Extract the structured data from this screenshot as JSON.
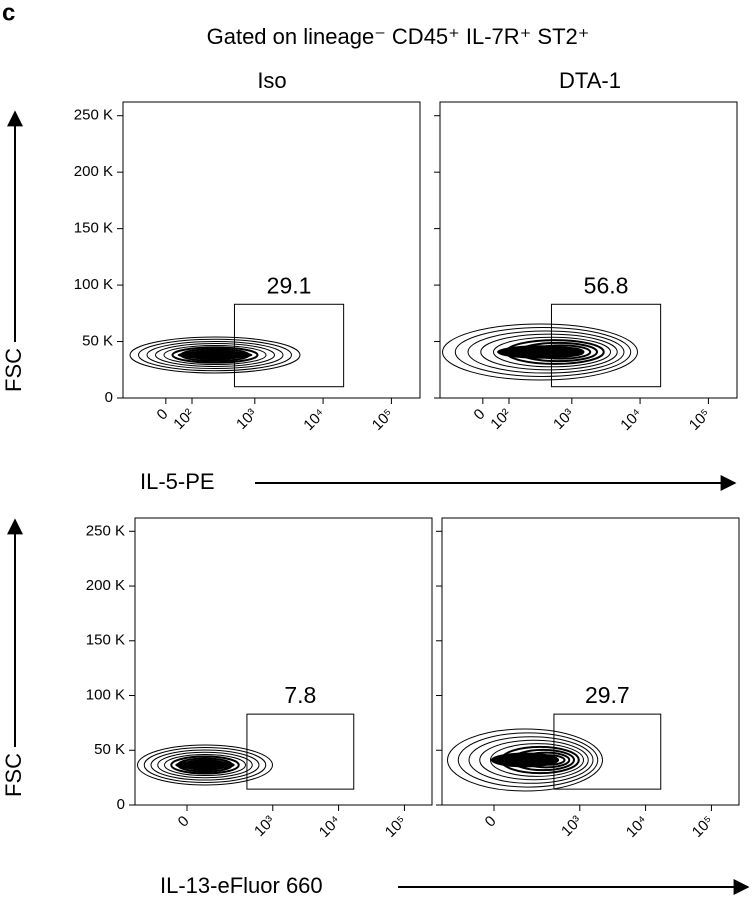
{
  "panel_label": "c",
  "title": "Gated on lineage⁻ CD45⁺ IL-7R⁺ ST2⁺",
  "columns": [
    "Iso",
    "DTA-1"
  ],
  "rows": [
    {
      "y_label": "FSC",
      "x_label": "IL-5-PE",
      "xlim": [
        -200,
        262144
      ],
      "ylim": [
        0,
        262144
      ],
      "yticks": [
        0,
        {
          "value": 50000,
          "label": "50 K"
        },
        {
          "value": 100000,
          "label": "100 K"
        },
        {
          "value": 150000,
          "label": "150 K"
        },
        {
          "value": 200000,
          "label": "200 K"
        },
        {
          "value": 250000,
          "label": "250 K"
        }
      ],
      "xticks": [
        0,
        {
          "value": 100,
          "label": "10²"
        },
        {
          "value": 1000,
          "label": "10³"
        },
        {
          "value": 10000,
          "label": "10⁴"
        },
        {
          "value": 100000,
          "label": "10⁵"
        }
      ],
      "gates": [
        {
          "x": [
            500,
            20000
          ],
          "y": [
            10000,
            83000
          ],
          "percent": 29.1
        },
        {
          "x": [
            500,
            20000
          ],
          "y": [
            10000,
            83000
          ],
          "percent": 56.8
        }
      ]
    },
    {
      "y_label": "FSC",
      "x_label": "IL-13-eFluor 660",
      "xlim": [
        -300,
        262144
      ],
      "ylim": [
        0,
        262144
      ],
      "yticks": [
        0,
        {
          "value": 50000,
          "label": "50 K"
        },
        {
          "value": 100000,
          "label": "100 K"
        },
        {
          "value": 150000,
          "label": "150 K"
        },
        {
          "value": 200000,
          "label": "200 K"
        },
        {
          "value": 250000,
          "label": "250 K"
        }
      ],
      "xticks": [
        0,
        {
          "value": 1000,
          "label": "10³"
        },
        {
          "value": 10000,
          "label": "10⁴"
        },
        {
          "value": 100000,
          "label": "10⁵"
        }
      ],
      "gates": [
        {
          "x": [
            400,
            17000
          ],
          "y": [
            14500,
            83000
          ],
          "percent": 7.8
        },
        {
          "x": [
            400,
            17000
          ],
          "y": [
            14500,
            83000
          ],
          "percent": 29.7
        }
      ]
    }
  ]
}
